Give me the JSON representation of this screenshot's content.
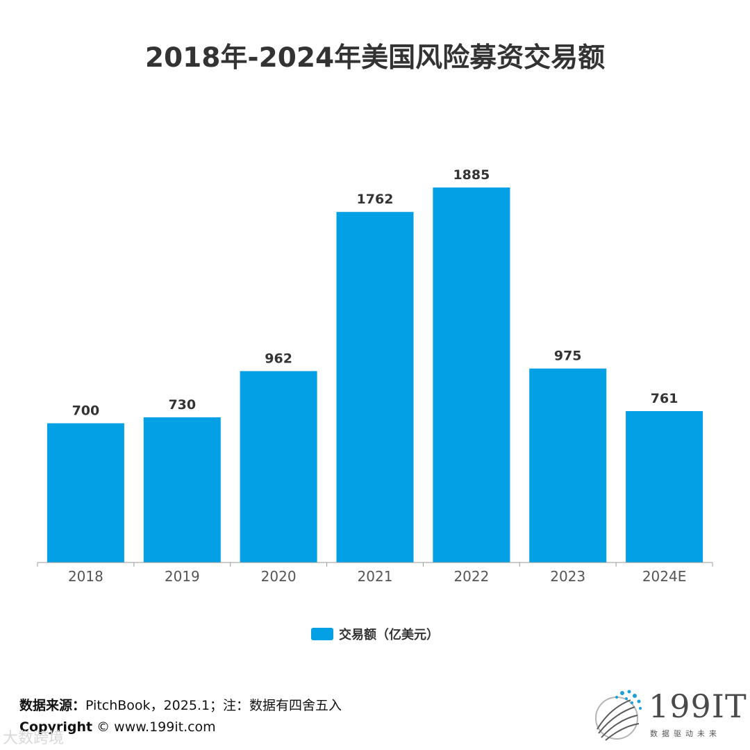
{
  "title": "2018年-2024年美国风险募资交易额",
  "colors": {
    "bar": "#03A0E6",
    "axis": "#999999",
    "label": "#333333",
    "tick": "#555555"
  },
  "chart_data": {
    "type": "bar",
    "title": "2018年-2024年美国风险募资交易额",
    "categories": [
      "2018",
      "2019",
      "2020",
      "2021",
      "2022",
      "2023",
      "2024E"
    ],
    "series": [
      {
        "name": "交易额（亿美元）",
        "values": [
          700,
          730,
          962,
          1762,
          1885,
          975,
          761
        ]
      }
    ],
    "xlabel": "",
    "ylabel": "",
    "ylim": [
      0,
      1885
    ],
    "grid": false,
    "legend_position": "bottom",
    "data_labels": true
  },
  "legend": {
    "label": "交易额（亿美元）"
  },
  "footer": {
    "source_label": "数据来源：",
    "source_text": "PitchBook，2025.1；注：数据有四舍五入",
    "copyright_label": "Copyright",
    "copyright_text": " © www.199it.com"
  },
  "watermark": "大数跨境",
  "logo": {
    "text": "199IT",
    "tagline": "数据驱动未来",
    "icon": "dot-swirl-logo-icon"
  }
}
